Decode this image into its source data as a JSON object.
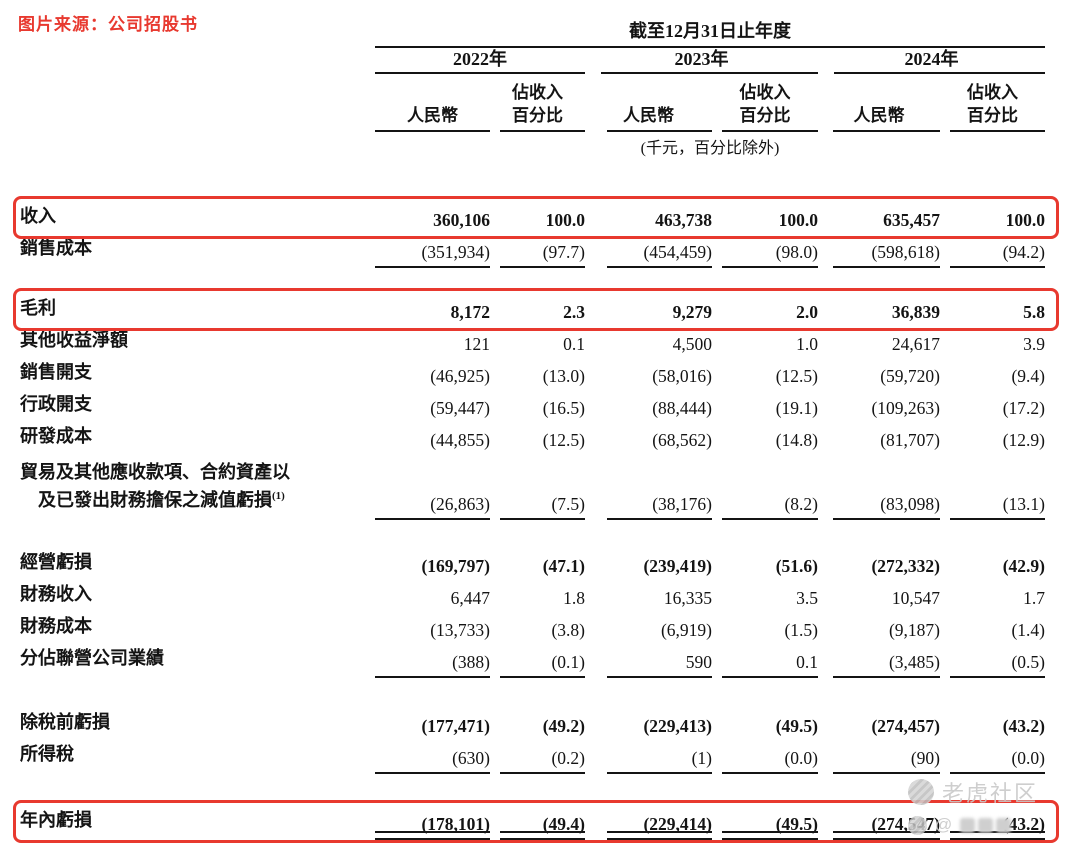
{
  "source_label": "图片来源：公司招股书",
  "colors": {
    "accent_red": "#e8392f",
    "text": "#141414",
    "watermark_gray": "#c9c9c9"
  },
  "table": {
    "header": {
      "period_title": "截至12月31日止年度",
      "years": [
        "2022年",
        "2023年",
        "2024年"
      ],
      "col_rmb": "人民幣",
      "col_pct_line1": "佔收入",
      "col_pct_line2": "百分比",
      "unit_note": "(千元，百分比除外)"
    },
    "rows": [
      {
        "label": "收入",
        "values": [
          "360,106",
          "100.0",
          "463,738",
          "100.0",
          "635,457",
          "100.0"
        ],
        "bold": true,
        "highlight": true
      },
      {
        "label": "銷售成本",
        "values": [
          "(351,934)",
          "(97.7)",
          "(454,459)",
          "(98.0)",
          "(598,618)",
          "(94.2)"
        ],
        "underline": true
      },
      {
        "label": "毛利",
        "values": [
          "8,172",
          "2.3",
          "9,279",
          "2.0",
          "36,839",
          "5.8"
        ],
        "bold": true,
        "highlight": true
      },
      {
        "label": "其他收益淨額",
        "values": [
          "121",
          "0.1",
          "4,500",
          "1.0",
          "24,617",
          "3.9"
        ]
      },
      {
        "label": "銷售開支",
        "values": [
          "(46,925)",
          "(13.0)",
          "(58,016)",
          "(12.5)",
          "(59,720)",
          "(9.4)"
        ]
      },
      {
        "label": "行政開支",
        "values": [
          "(59,447)",
          "(16.5)",
          "(88,444)",
          "(19.1)",
          "(109,263)",
          "(17.2)"
        ]
      },
      {
        "label": "研發成本",
        "values": [
          "(44,855)",
          "(12.5)",
          "(68,562)",
          "(14.8)",
          "(81,707)",
          "(12.9)"
        ]
      },
      {
        "label_lines": [
          "貿易及其他應收款項、合約資產以",
          "及已發出財務擔保之減值虧損"
        ],
        "label_sup": "(1)",
        "values": [
          "(26,863)",
          "(7.5)",
          "(38,176)",
          "(8.2)",
          "(83,098)",
          "(13.1)"
        ],
        "underline": true
      },
      {
        "label": "經營虧損",
        "values": [
          "(169,797)",
          "(47.1)",
          "(239,419)",
          "(51.6)",
          "(272,332)",
          "(42.9)"
        ],
        "bold": true
      },
      {
        "label": "財務收入",
        "values": [
          "6,447",
          "1.8",
          "16,335",
          "3.5",
          "10,547",
          "1.7"
        ]
      },
      {
        "label": "財務成本",
        "values": [
          "(13,733)",
          "(3.8)",
          "(6,919)",
          "(1.5)",
          "(9,187)",
          "(1.4)"
        ]
      },
      {
        "label": "分佔聯營公司業績",
        "values": [
          "(388)",
          "(0.1)",
          "590",
          "0.1",
          "(3,485)",
          "(0.5)"
        ],
        "underline": true
      },
      {
        "label": "除稅前虧損",
        "values": [
          "(177,471)",
          "(49.2)",
          "(229,413)",
          "(49.5)",
          "(274,457)",
          "(43.2)"
        ],
        "bold": true
      },
      {
        "label": "所得稅",
        "values": [
          "(630)",
          "(0.2)",
          "(1)",
          "(0.0)",
          "(90)",
          "(0.0)"
        ],
        "underline": true
      },
      {
        "label": "年內虧損",
        "values": [
          "(178,101)",
          "(49.4)",
          "(229,414)",
          "(49.5)",
          "(274,547)",
          "(43.2)"
        ],
        "bold": true,
        "highlight": true,
        "double_underline": true
      }
    ]
  },
  "watermark": {
    "brand": "老虎社区",
    "handle_prefix": "@"
  }
}
